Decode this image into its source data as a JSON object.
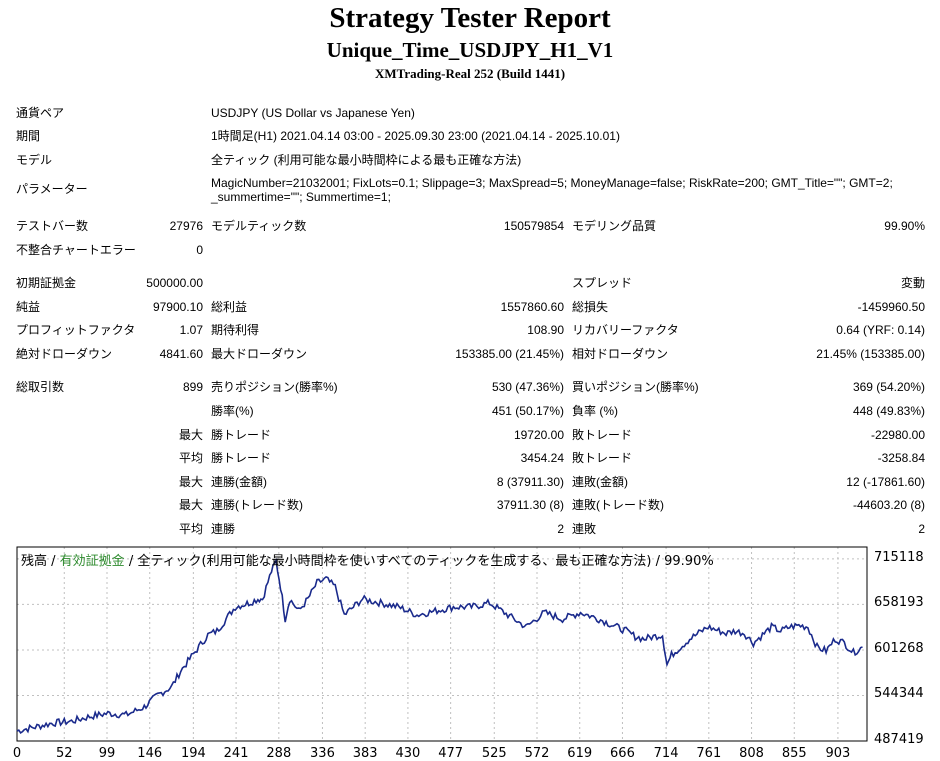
{
  "header": {
    "title": "Strategy Tester Report",
    "subtitle": "Unique_Time_USDJPY_H1_V1",
    "build": "XMTrading-Real 252 (Build 1441)"
  },
  "info": {
    "symbol_label": "通貨ペア",
    "symbol_value": "USDJPY (US Dollar vs Japanese Yen)",
    "period_label": "期間",
    "period_value": "1時間足(H1) 2021.04.14 03:00 - 2025.09.30 23:00 (2021.04.14 - 2025.10.01)",
    "model_label": "モデル",
    "model_value": "全ティック (利用可能な最小時間枠による最も正確な方法)",
    "params_label": "パラメーター",
    "params_line1": "MagicNumber=21032001; FixLots=0.1; Slippage=3; MaxSpread=5; MoneyManage=false; RiskRate=200; GMT_Title=\"\"; GMT=2;",
    "params_line2": "_summertime=\"\"; Summertime=1;"
  },
  "stats": {
    "bars_label": "テストバー数",
    "bars_value": "27976",
    "ticks_label": "モデルティック数",
    "ticks_value": "150579854",
    "quality_label": "モデリング品質",
    "quality_value": "99.90%",
    "errors_label": "不整合チャートエラー",
    "errors_value": "0",
    "deposit_label": "初期証拠金",
    "deposit_value": "500000.00",
    "spread_label": "スプレッド",
    "spread_value": "変動",
    "netprofit_label": "純益",
    "netprofit_value": "97900.10",
    "grossprofit_label": "総利益",
    "grossprofit_value": "1557860.60",
    "grossloss_label": "総損失",
    "grossloss_value": "-1459960.50",
    "pf_label": "プロフィットファクタ",
    "pf_value": "1.07",
    "expected_label": "期待利得",
    "expected_value": "108.90",
    "recovery_label": "リカバリーファクタ",
    "recovery_value": "0.64 (YRF: 0.14)",
    "absdd_label": "絶対ドローダウン",
    "absdd_value": "4841.60",
    "maxdd_label": "最大ドローダウン",
    "maxdd_value": "153385.00 (21.45%)",
    "reldd_label": "相対ドローダウン",
    "reldd_value": "21.45% (153385.00)",
    "trades_label": "総取引数",
    "trades_value": "899",
    "short_label": "売りポジション(勝率%)",
    "short_value": "530 (47.36%)",
    "long_label": "買いポジション(勝率%)",
    "long_value": "369 (54.20%)",
    "winrate_label": "勝率(%)",
    "winrate_value": "451 (50.17%)",
    "lossrate_label": "負率 (%)",
    "lossrate_value": "448 (49.83%)",
    "max_word": "最大",
    "avg_word": "平均",
    "win_trade_label": "勝トレード",
    "loss_trade_label": "敗トレード",
    "largest_win_value": "19720.00",
    "largest_loss_value": "-22980.00",
    "avg_win_value": "3454.24",
    "avg_loss_value": "-3258.84",
    "cons_wins_amt_label": "連勝(金額)",
    "cons_wins_amt_value": "8 (37911.30)",
    "cons_losses_amt_label": "連敗(金額)",
    "cons_losses_amt_value": "12 (-17861.60)",
    "cons_profit_label": "連勝(トレード数)",
    "cons_profit_value": "37911.30 (8)",
    "cons_loss_label": "連敗(トレード数)",
    "cons_loss_value": "-44603.20 (8)",
    "avg_cons_win_label": "連勝",
    "avg_cons_win_value": "2",
    "avg_cons_loss_label": "連敗",
    "avg_cons_loss_value": "2"
  },
  "chart_caption": {
    "balance": "残高",
    "sep1": " / ",
    "equity": "有効証拠金",
    "rest": " / 全ティック(利用可能な最小時間枠を使いすべてのティックを生成する、最も正確な方法) / 99.90%"
  },
  "colors": {
    "balance_line": "#1a2a8c",
    "equity_label": "#2e8b2e",
    "grid": "#c0c0c0"
  },
  "chart_data": {
    "type": "line",
    "title": "",
    "xlabel": "",
    "ylabel": "",
    "ylim": [
      487419,
      730000
    ],
    "xlim": [
      0,
      935
    ],
    "y_ticks": [
      "715118",
      "658193",
      "601268",
      "544344",
      "487419"
    ],
    "y_tick_values": [
      715118,
      658193,
      601268,
      544344,
      487419
    ],
    "x_ticks": [
      "0",
      "52",
      "99",
      "146",
      "194",
      "241",
      "288",
      "336",
      "383",
      "430",
      "477",
      "525",
      "572",
      "619",
      "666",
      "714",
      "761",
      "808",
      "855",
      "903"
    ],
    "x_tick_values": [
      0,
      52,
      99,
      146,
      194,
      241,
      288,
      336,
      383,
      430,
      477,
      525,
      572,
      619,
      666,
      714,
      761,
      808,
      855,
      903
    ],
    "series": [
      {
        "x": [
          0,
          20,
          40,
          60,
          80,
          100,
          120,
          140,
          155,
          170,
          180,
          190,
          200,
          210,
          220,
          230,
          240,
          255,
          265,
          270,
          280,
          285,
          290,
          295,
          300,
          310,
          320,
          330,
          340,
          350,
          360,
          380,
          400,
          420,
          440,
          460,
          480,
          500,
          520,
          540,
          560,
          580,
          600,
          620,
          640,
          660,
          670,
          680,
          690,
          700,
          710,
          715,
          720,
          740,
          760,
          780,
          790,
          800,
          810,
          820,
          830,
          840,
          850,
          860,
          870,
          880,
          890,
          900,
          910,
          920,
          930
        ],
        "y": [
          500000,
          505000,
          510000,
          512000,
          518000,
          522000,
          520000,
          530000,
          545000,
          555000,
          575000,
          590000,
          605000,
          620000,
          625000,
          640000,
          655000,
          660000,
          665000,
          665000,
          700000,
          712000,
          680000,
          640000,
          665000,
          650000,
          665000,
          685000,
          690000,
          680000,
          645000,
          665000,
          660000,
          655000,
          645000,
          650000,
          655000,
          655000,
          660000,
          645000,
          630000,
          648000,
          640000,
          648000,
          640000,
          630000,
          625000,
          618000,
          615000,
          618000,
          620000,
          583000,
          595000,
          615000,
          630000,
          622000,
          625000,
          622000,
          610000,
          620000,
          630000,
          625000,
          630000,
          632000,
          630000,
          605000,
          600000,
          615000,
          610000,
          598000,
          605000
        ]
      }
    ]
  }
}
